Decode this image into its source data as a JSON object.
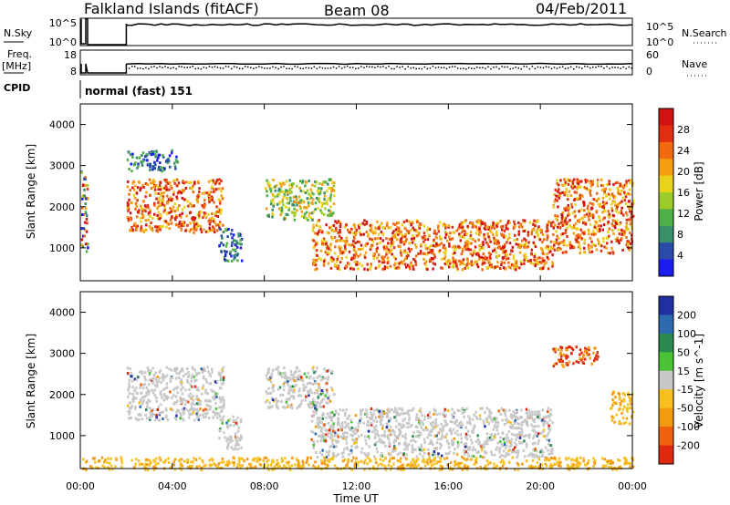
{
  "header": {
    "station": "Falkland Islands (fitACF)",
    "beam": "Beam 08",
    "date": "04/Feb/2011"
  },
  "nsky_panel": {
    "left_label": "N.Sky",
    "left_ticks": [
      "10^5",
      "10^0"
    ],
    "right_ticks": [
      "10^5",
      "10^0"
    ],
    "right_label": "N.Search"
  },
  "freq_panel": {
    "left_label_1": "Freq.",
    "left_label_2": "[MHz]",
    "left_ticks": [
      "18",
      "8"
    ],
    "right_ticks": [
      "60",
      "0"
    ],
    "right_label": "Nave"
  },
  "cpid": {
    "label": "CPID",
    "value": "normal (fast) 151"
  },
  "x_axis": {
    "label": "Time UT",
    "ticks": [
      "00:00",
      "04:00",
      "08:00",
      "12:00",
      "16:00",
      "20:00",
      "00:00"
    ]
  },
  "chart_data": [
    {
      "type": "heatmap",
      "name": "power",
      "ylabel": "Slant Range [km]",
      "yticks": [
        "1000",
        "2000",
        "3000",
        "4000"
      ],
      "ylim": [
        200,
        4500
      ],
      "xlim_hours": [
        0,
        24
      ],
      "colorbar": {
        "label": "Power [dB]",
        "ticks": [
          "4",
          "8",
          "12",
          "16",
          "20",
          "24",
          "28"
        ],
        "colors": [
          "#1c1cf0",
          "#2a4ca8",
          "#3a8f6a",
          "#4fb04a",
          "#9ccc2a",
          "#e9d21a",
          "#f5a012",
          "#f26a10",
          "#e03010",
          "#d21212"
        ]
      },
      "echo_regions": [
        {
          "t": [
            0.0,
            0.3
          ],
          "r": [
            900,
            2900
          ],
          "level": "mixed"
        },
        {
          "t": [
            2.0,
            6.2
          ],
          "r": [
            1400,
            2700
          ],
          "level": "high"
        },
        {
          "t": [
            2.0,
            4.2
          ],
          "r": [
            2900,
            3400
          ],
          "level": "low"
        },
        {
          "t": [
            6.0,
            7.0
          ],
          "r": [
            700,
            1500
          ],
          "level": "low"
        },
        {
          "t": [
            8.0,
            11.0
          ],
          "r": [
            1700,
            2700
          ],
          "level": "mid"
        },
        {
          "t": [
            10.0,
            20.5
          ],
          "r": [
            500,
            1700
          ],
          "level": "high"
        },
        {
          "t": [
            20.5,
            24.0
          ],
          "r": [
            900,
            2700
          ],
          "level": "high"
        }
      ]
    },
    {
      "type": "heatmap",
      "name": "velocity",
      "ylabel": "Slant Range [km]",
      "yticks": [
        "1000",
        "2000",
        "3000",
        "4000"
      ],
      "ylim": [
        200,
        4500
      ],
      "xlim_hours": [
        0,
        24
      ],
      "colorbar": {
        "label": "Velocity [m s^-1]",
        "ticks": [
          "200",
          "100",
          "50",
          "15",
          "-15",
          "-50",
          "-100",
          "-200"
        ],
        "colors": [
          "#2030a0",
          "#2e6ab0",
          "#2a8a50",
          "#4cc238",
          "#c8c8c8",
          "#f7c020",
          "#f49a10",
          "#ef6010",
          "#e02a10"
        ]
      },
      "echo_regions": [
        {
          "t": [
            2.0,
            6.2
          ],
          "r": [
            1400,
            2700
          ],
          "level": "gray"
        },
        {
          "t": [
            6.0,
            7.0
          ],
          "r": [
            700,
            1500
          ],
          "level": "gray"
        },
        {
          "t": [
            8.0,
            11.0
          ],
          "r": [
            1700,
            2700
          ],
          "level": "gray"
        },
        {
          "t": [
            10.0,
            20.5
          ],
          "r": [
            500,
            1700
          ],
          "level": "gray"
        },
        {
          "t": [
            20.5,
            22.5
          ],
          "r": [
            2700,
            3200
          ],
          "level": "red"
        },
        {
          "t": [
            23.0,
            24.0
          ],
          "r": [
            1300,
            2100
          ],
          "level": "orange"
        },
        {
          "t": [
            0.0,
            24.0
          ],
          "r": [
            200,
            500
          ],
          "level": "orange"
        }
      ]
    }
  ]
}
